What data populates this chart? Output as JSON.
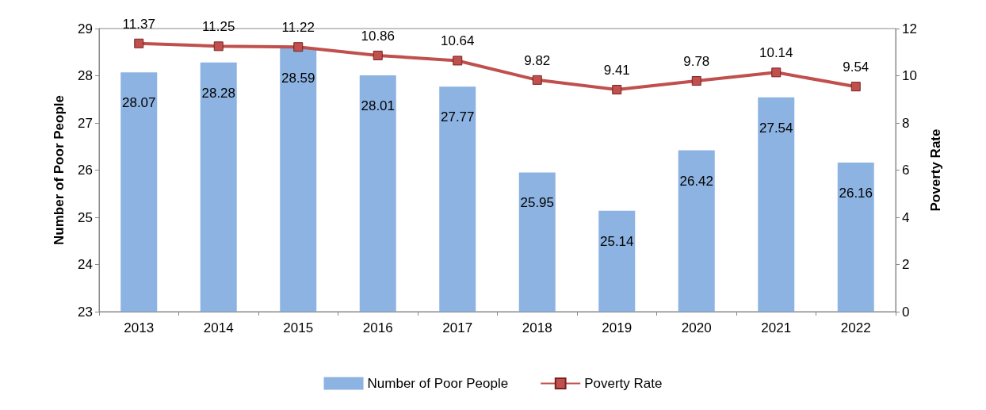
{
  "chart_data": {
    "type": "bar",
    "categories": [
      "2013",
      "2014",
      "2015",
      "2016",
      "2017",
      "2018",
      "2019",
      "2020",
      "2021",
      "2022"
    ],
    "ylabel": "Number of Poor People",
    "y2label": "Poverty Rate",
    "series": [
      {
        "name": "Number of Poor People",
        "color": "#8db3e2",
        "values": [
          28.07,
          28.28,
          28.59,
          28.01,
          27.77,
          25.95,
          25.14,
          26.42,
          27.54,
          26.16
        ]
      },
      {
        "name": "Poverty Rate",
        "type": "line",
        "axis": "y2",
        "color": "#c0504d",
        "marker": "square",
        "values": [
          11.37,
          11.25,
          11.22,
          10.86,
          10.64,
          9.82,
          9.41,
          9.78,
          10.14,
          9.54
        ]
      }
    ],
    "ylim": [
      23,
      29
    ],
    "yticks": [
      23,
      24,
      25,
      26,
      27,
      28,
      29
    ],
    "y2lim": [
      0,
      12
    ],
    "y2ticks": [
      0,
      2,
      4,
      6,
      8,
      10,
      12
    ],
    "data_labels": true,
    "grid": false,
    "legend": "bottom"
  }
}
